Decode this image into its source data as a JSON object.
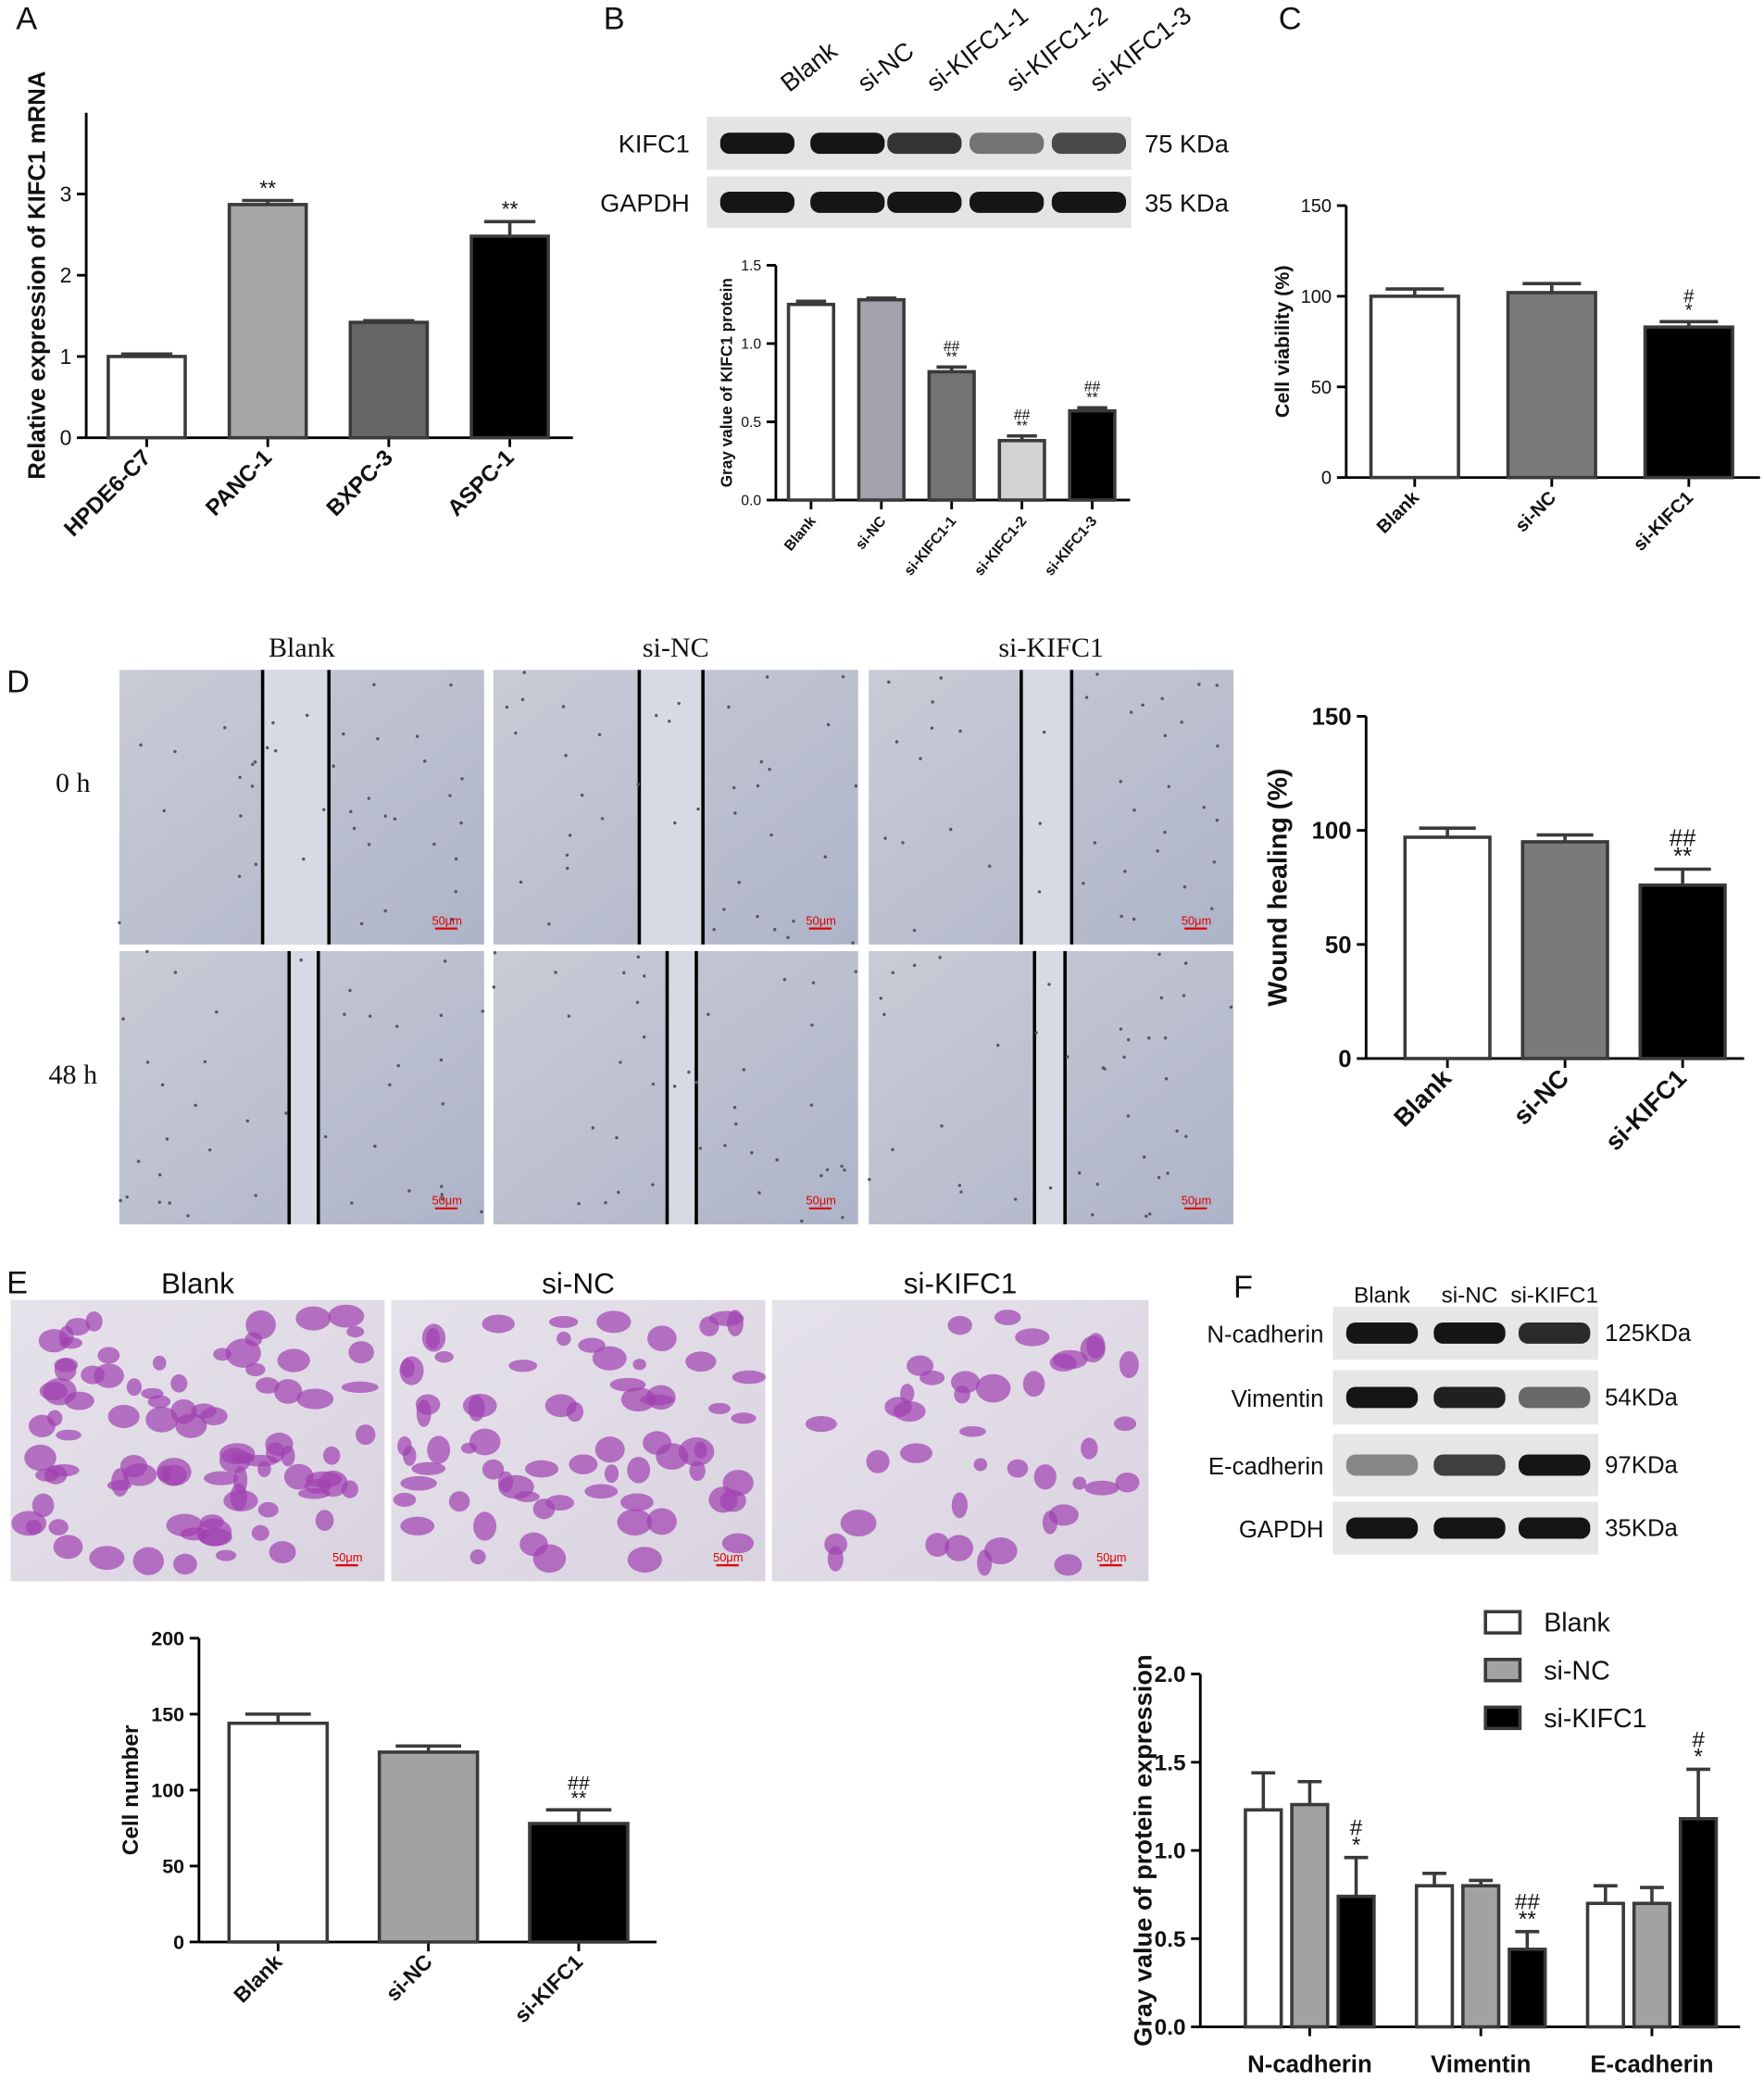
{
  "panel_labels": [
    "A",
    "B",
    "C",
    "D",
    "E",
    "F"
  ],
  "blot_B": {
    "lanes": [
      "Blank",
      "si-NC",
      "si-KIFC1-1",
      "si-KIFC1-2",
      "si-KIFC1-3"
    ],
    "rows": [
      {
        "protein": "KIFC1",
        "size": "75 KDa"
      },
      {
        "protein": "GAPDH",
        "size": "35 KDa"
      }
    ]
  },
  "wound_D": {
    "groups": [
      "Blank",
      "si-NC",
      "si-KIFC1"
    ],
    "times": [
      "0 h",
      "48 h"
    ],
    "scale_bar": "50μm"
  },
  "transwell_E": {
    "groups": [
      "Blank",
      "si-NC",
      "si-KIFC1"
    ],
    "scale_bar": "50μm"
  },
  "blot_F": {
    "lanes": [
      "Blank",
      "si-NC",
      "si-KIFC1"
    ],
    "rows": [
      {
        "protein": "N-cadherin",
        "size": "125KDa"
      },
      {
        "protein": "Vimentin",
        "size": "54KDa"
      },
      {
        "protein": "E-cadherin",
        "size": "97KDa"
      },
      {
        "protein": "GAPDH",
        "size": "35KDa"
      }
    ]
  },
  "chart_data": [
    {
      "type": "bar",
      "y_label": "Relative expression of KIFC1 mRNA",
      "categories": [
        "HPDE6-C7",
        "PANC-1",
        "BXPC-3",
        "ASPC-1"
      ],
      "values": [
        1.0,
        2.87,
        1.42,
        2.48
      ],
      "errors": [
        0.03,
        0.05,
        0.02,
        0.18
      ],
      "annotations": [
        null,
        [
          "**"
        ],
        null,
        [
          "**"
        ]
      ],
      "colors": [
        "#ffffff",
        "#a6a6a6",
        "#666666",
        "#000000"
      ],
      "ylim": [
        0,
        4
      ],
      "yticks": [
        0,
        1,
        2,
        3
      ]
    },
    {
      "type": "bar",
      "y_label": "Gray value of KIFC1 protein",
      "categories": [
        "Blank",
        "si-NC",
        "si-KIFC1-1",
        "si-KIFC1-2",
        "si-KIFC1-3"
      ],
      "values": [
        1.25,
        1.28,
        0.82,
        0.38,
        0.57
      ],
      "errors": [
        0.02,
        0.01,
        0.03,
        0.03,
        0.02
      ],
      "annotations": [
        null,
        null,
        [
          "##",
          "**"
        ],
        [
          "##",
          "**"
        ],
        [
          "##",
          "**"
        ]
      ],
      "colors": [
        "#ffffff",
        "#a2a2aa",
        "#737373",
        "#d2d2d2",
        "#000000"
      ],
      "ylim": [
        0,
        1.5
      ],
      "yticks": [
        {
          "value": 0,
          "label": "0.0"
        },
        {
          "value": 0.5,
          "label": "0.5"
        },
        {
          "value": 1,
          "label": "1.0"
        },
        {
          "value": 1.5,
          "label": "1.5"
        }
      ]
    },
    {
      "type": "bar",
      "y_label": "Cell viability (%)",
      "categories": [
        "Blank",
        "si-NC",
        "si-KIFC1"
      ],
      "values": [
        100,
        102,
        83
      ],
      "errors": [
        4,
        5,
        3
      ],
      "annotations": [
        null,
        null,
        [
          "#",
          "*"
        ]
      ],
      "colors": [
        "#ffffff",
        "#7a7a7a",
        "#000000"
      ],
      "ylim": [
        0,
        150
      ],
      "yticks": [
        0,
        50,
        100,
        150
      ]
    },
    {
      "type": "bar",
      "y_label": "Wound healing (%)",
      "categories": [
        "Blank",
        "si-NC",
        "si-KIFC1"
      ],
      "values": [
        97,
        95,
        76
      ],
      "errors": [
        4,
        3,
        7
      ],
      "annotations": [
        null,
        null,
        [
          "##",
          "**"
        ]
      ],
      "colors": [
        "#ffffff",
        "#7a7a7a",
        "#000000"
      ],
      "ylim": [
        0,
        150
      ],
      "yticks": [
        0,
        50,
        100,
        150
      ]
    },
    {
      "type": "bar",
      "y_label": "Cell number",
      "categories": [
        "Blank",
        "si-NC",
        "si-KIFC1"
      ],
      "values": [
        144,
        125,
        78
      ],
      "errors": [
        6,
        4,
        9
      ],
      "annotations": [
        null,
        null,
        [
          "##",
          "**"
        ]
      ],
      "colors": [
        "#ffffff",
        "#a2a2a2",
        "#000000"
      ],
      "ylim": [
        0,
        200
      ],
      "yticks": [
        0,
        50,
        100,
        150,
        200
      ]
    },
    {
      "type": "bar",
      "y_label": "Gray value of protein expression",
      "categories": [
        "N-cadherin",
        "Vimentin",
        "E-cadherin"
      ],
      "series": [
        {
          "name": "Blank",
          "color": "#ffffff",
          "values": [
            1.23,
            0.8,
            0.7
          ],
          "errors": [
            0.21,
            0.07,
            0.1
          ]
        },
        {
          "name": "si-NC",
          "color": "#a2a2a2",
          "values": [
            1.26,
            0.8,
            0.7
          ],
          "errors": [
            0.13,
            0.03,
            0.09
          ]
        },
        {
          "name": "si-KIFC1",
          "color": "#000000",
          "values": [
            0.74,
            0.44,
            1.18
          ],
          "errors": [
            0.22,
            0.1,
            0.28
          ],
          "annotations": [
            [
              "#",
              "*"
            ],
            [
              "##",
              "**"
            ],
            [
              "#",
              "*"
            ]
          ]
        }
      ],
      "ylim": [
        0,
        2
      ],
      "yticks": [
        {
          "value": 0,
          "label": "0.0"
        },
        {
          "value": 0.5,
          "label": "0.5"
        },
        {
          "value": 1,
          "label": "1.0"
        },
        {
          "value": 1.5,
          "label": "1.5"
        },
        {
          "value": 2,
          "label": "2.0"
        }
      ],
      "legend": "top-right"
    }
  ]
}
